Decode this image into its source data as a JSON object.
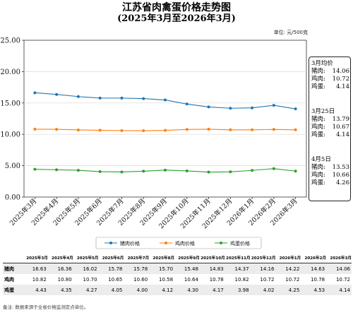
{
  "title": "江苏省肉禽蛋价格走势图",
  "subtitle": "(2025年3月至2026年3月)",
  "unit": "单位: 元/500克",
  "chart_data": {
    "type": "line",
    "categories": [
      "2025年3月",
      "2025年4月",
      "2025年5月",
      "2025年6月",
      "2025年7月",
      "2025年8月",
      "2025年9月",
      "2025年10月",
      "2025年11月",
      "2025年12月",
      "2026年1月",
      "2026年2月",
      "2026年3月"
    ],
    "series": [
      {
        "name": "猪肉价格",
        "color": "#1f77b4",
        "values": [
          16.63,
          16.36,
          16.02,
          15.78,
          15.78,
          15.7,
          15.48,
          14.83,
          14.37,
          14.16,
          14.22,
          14.63,
          14.06
        ]
      },
      {
        "name": "鸡肉价格",
        "color": "#ff7f0e",
        "values": [
          10.82,
          10.8,
          10.7,
          10.65,
          10.6,
          10.58,
          10.64,
          10.78,
          10.82,
          10.72,
          10.72,
          10.78,
          10.72
        ]
      },
      {
        "name": "鸡蛋价格",
        "color": "#2ca02c",
        "values": [
          4.43,
          4.35,
          4.27,
          4.05,
          4.0,
          4.12,
          4.3,
          4.17,
          3.98,
          4.02,
          4.25,
          4.53,
          4.14
        ]
      }
    ],
    "ylim": [
      0,
      25
    ],
    "yticks": [
      "0.00",
      "5.00",
      "10.00",
      "15.00",
      "20.00",
      "25.00"
    ],
    "grid": true,
    "legend": "bottom-center"
  },
  "sidebox": [
    {
      "date": "3月均价",
      "rows": [
        {
          "label": "猪肉:",
          "value": "14.06"
        },
        {
          "label": "鸡肉:",
          "value": "10.72"
        },
        {
          "label": "鸡蛋:",
          "value": "4.14"
        }
      ]
    },
    {
      "date": "3月25日",
      "rows": [
        {
          "label": "猪肉:",
          "value": "13.79"
        },
        {
          "label": "鸡肉:",
          "value": "10.67"
        },
        {
          "label": "鸡蛋:",
          "value": "4.14"
        }
      ]
    },
    {
      "date": "4月5日",
      "rows": [
        {
          "label": "猪肉:",
          "value": "13.53"
        },
        {
          "label": "鸡肉:",
          "value": "10.66"
        },
        {
          "label": "鸡蛋:",
          "value": "4.26"
        }
      ]
    }
  ],
  "table": {
    "headers": [
      "2025年3月",
      "2025年4月",
      "2025年5月",
      "2025年6月",
      "2025年7月",
      "2025年8月",
      "2025年9月",
      "2025年10月",
      "2025年11月",
      "2025年12月",
      "2026年1月",
      "2026年2月",
      "2026年3月"
    ],
    "rows": [
      {
        "label": "猪肉",
        "values": [
          "16.63",
          "16.36",
          "16.02",
          "15.78",
          "15.78",
          "15.70",
          "15.48",
          "14.83",
          "14.37",
          "14.16",
          "14.22",
          "14.63",
          "14.06"
        ]
      },
      {
        "label": "鸡肉",
        "values": [
          "10.82",
          "10.80",
          "10.70",
          "10.65",
          "10.60",
          "10.58",
          "10.64",
          "10.78",
          "10.82",
          "10.72",
          "10.72",
          "10.78",
          "10.72"
        ]
      },
      {
        "label": "鸡蛋",
        "values": [
          "4.43",
          "4.35",
          "4.27",
          "4.05",
          "4.00",
          "4.12",
          "4.30",
          "4.17",
          "3.98",
          "4.02",
          "4.25",
          "4.53",
          "4.14"
        ]
      }
    ]
  },
  "footnote": "备注: 数据来源于全省价格监测定点单位。"
}
